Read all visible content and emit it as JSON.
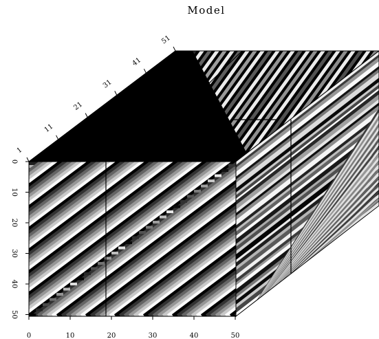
{
  "title": "Model",
  "front_x_axis": {
    "ticks": [
      "0",
      "10",
      "20",
      "30",
      "40",
      "50"
    ]
  },
  "front_y_axis": {
    "ticks": [
      "0",
      "10",
      "20",
      "30",
      "40",
      "50"
    ]
  },
  "depth_axis": {
    "ticks": [
      "1",
      "11",
      "21",
      "31",
      "41",
      "51"
    ]
  },
  "colors": {
    "background": "#ffffff",
    "foreground": "#000000"
  }
}
